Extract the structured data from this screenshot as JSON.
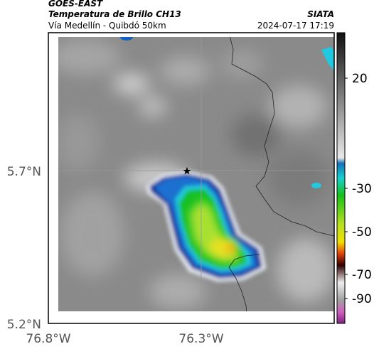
{
  "header": {
    "satellite": "GOES-EAST",
    "title": "Temperatura de Brillo CH13",
    "subtitle": "Vía Medellín - Quibdó 50km",
    "source": "SIATA",
    "timestamp": "2024-07-17 17:19"
  },
  "map": {
    "lat_labels": [
      "5.7°N",
      "5.2°N"
    ],
    "lon_labels": [
      "76.8°W",
      "76.3°W"
    ]
  },
  "colorbar": {
    "tick_labels": [
      "20",
      "-30",
      "-50",
      "-70",
      "-90"
    ]
  }
}
